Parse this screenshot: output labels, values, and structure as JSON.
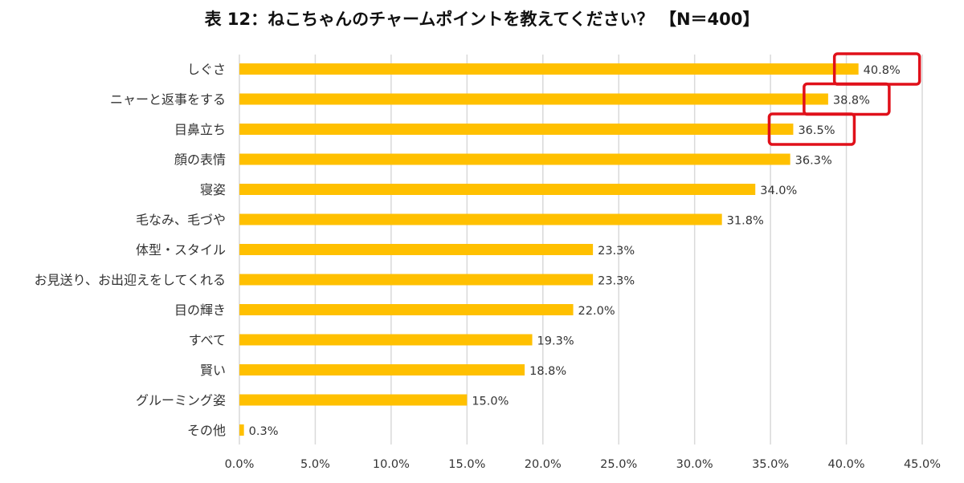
{
  "chart_data": {
    "type": "bar",
    "orientation": "horizontal",
    "title": "表 12：ねこちゃんのチャームポイントを教えてください？ 【N＝400】",
    "categories": [
      "しぐさ",
      "ニャーと返事をする",
      "目鼻立ち",
      "顔の表情",
      "寝姿",
      "毛なみ、毛づや",
      "体型・スタイル",
      "お見送り、お出迎えをしてくれる",
      "目の輝き",
      "すべて",
      "賢い",
      "グルーミング姿",
      "その他"
    ],
    "values": [
      40.8,
      38.8,
      36.5,
      36.3,
      34.0,
      31.8,
      23.3,
      23.3,
      22.0,
      19.3,
      18.8,
      15.0,
      0.3
    ],
    "value_labels": [
      "40.8%",
      "38.8%",
      "36.5%",
      "36.3%",
      "34.0%",
      "31.8%",
      "23.3%",
      "23.3%",
      "22.0%",
      "19.3%",
      "18.8%",
      "15.0%",
      "0.3%"
    ],
    "xlim": [
      0,
      45
    ],
    "xticks": [
      0,
      5,
      10,
      15,
      20,
      25,
      30,
      35,
      40,
      45
    ],
    "xtick_labels": [
      "0.0%",
      "5.0%",
      "10.0%",
      "15.0%",
      "20.0%",
      "25.0%",
      "30.0%",
      "35.0%",
      "40.0%",
      "45.0%"
    ],
    "grid": "vertical",
    "highlighted": [
      0,
      1,
      2
    ],
    "colors": {
      "bar": "#FFC000",
      "grid": "#D9D9D9",
      "highlight": "#E0101A",
      "text": "#333333"
    }
  }
}
